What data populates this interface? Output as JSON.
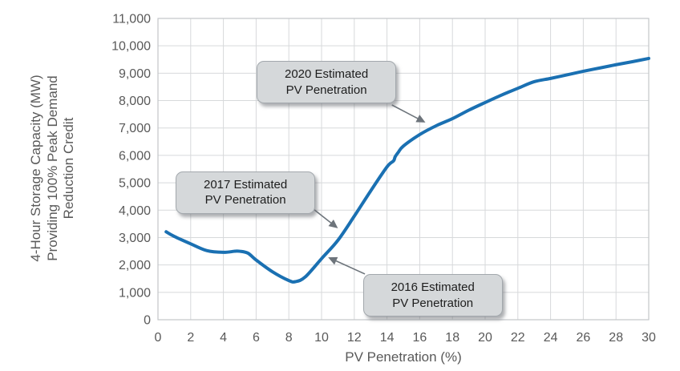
{
  "chart_data": {
    "type": "line",
    "title": "",
    "xlabel": "PV Penetration (%)",
    "ylabel": "4-Hour Storage Capacity (MW)\nProviding 100% Peak Demand\nReduction Credit",
    "xlim": [
      0,
      30
    ],
    "ylim": [
      0,
      11000
    ],
    "grid": true,
    "legend": "none",
    "x_tick_values": [
      0,
      2,
      4,
      6,
      8,
      10,
      12,
      14,
      16,
      18,
      20,
      22,
      24,
      26,
      28,
      30
    ],
    "x_tick_labels": [
      "0",
      "2",
      "4",
      "6",
      "8",
      "10",
      "12",
      "14",
      "16",
      "18",
      "20",
      "22",
      "24",
      "26",
      "28",
      "30"
    ],
    "y_tick_values": [
      0,
      1000,
      2000,
      3000,
      4000,
      5000,
      6000,
      7000,
      8000,
      9000,
      10000,
      11000
    ],
    "y_tick_labels": [
      "0",
      "1,000",
      "2,000",
      "3,000",
      "4,000",
      "5,000",
      "6,000",
      "7,000",
      "8,000",
      "9,000",
      "10,000",
      "11,000"
    ],
    "series": [
      {
        "name": "4-hour storage capacity providing 100% peak demand reduction credit",
        "color": "#1a70b2",
        "points": [
          [
            0.5,
            3210
          ],
          [
            1,
            3040
          ],
          [
            2,
            2770
          ],
          [
            3,
            2520
          ],
          [
            4,
            2460
          ],
          [
            4.7,
            2500
          ],
          [
            5,
            2500
          ],
          [
            5.5,
            2430
          ],
          [
            6,
            2180
          ],
          [
            7,
            1750
          ],
          [
            8,
            1430
          ],
          [
            8.4,
            1390
          ],
          [
            9,
            1560
          ],
          [
            10,
            2230
          ],
          [
            11,
            2900
          ],
          [
            12,
            3780
          ],
          [
            13,
            4700
          ],
          [
            14,
            5580
          ],
          [
            14.4,
            5800
          ],
          [
            14.5,
            5950
          ],
          [
            14.7,
            6120
          ],
          [
            15,
            6340
          ],
          [
            16,
            6760
          ],
          [
            17,
            7080
          ],
          [
            18,
            7340
          ],
          [
            19,
            7650
          ],
          [
            20,
            7930
          ],
          [
            21,
            8200
          ],
          [
            22,
            8450
          ],
          [
            23,
            8690
          ],
          [
            24,
            8810
          ],
          [
            25,
            8940
          ],
          [
            26,
            9070
          ],
          [
            27,
            9190
          ],
          [
            28,
            9310
          ],
          [
            29,
            9420
          ],
          [
            30,
            9540
          ]
        ]
      }
    ],
    "annotations": [
      {
        "id": "2020",
        "label": "2020 Estimated\nPV Penetration",
        "box_center": {
          "x": 10.3,
          "y": 8660
        },
        "arrow": {
          "from": {
            "x": 14.3,
            "y": 7840
          },
          "to": {
            "x": 16.35,
            "y": 7200
          }
        }
      },
      {
        "id": "2017",
        "label": "2017 Estimated\nPV Penetration",
        "box_center": {
          "x": 5.35,
          "y": 4650
        },
        "arrow": {
          "from": {
            "x": 9.56,
            "y": 4010
          },
          "to": {
            "x": 11.0,
            "y": 3340
          }
        }
      },
      {
        "id": "2016",
        "label": "2016 Estimated\nPV Penetration",
        "box_center": {
          "x": 16.8,
          "y": 890
        },
        "arrow": {
          "from": {
            "x": 12.65,
            "y": 1670
          },
          "to": {
            "x": 10.4,
            "y": 2280
          }
        }
      }
    ],
    "colors": {
      "line": "#1a70b2",
      "gridline": "#d7d9db",
      "plot_border": "#c3c6c9",
      "tick_label": "#595959",
      "axis_title": "#595959",
      "callout_fill": "#d5d8da",
      "callout_border": "#a3a8ad",
      "callout_text": "#1d1d1d",
      "arrow": "#6d747b",
      "background": "#ffffff"
    }
  }
}
